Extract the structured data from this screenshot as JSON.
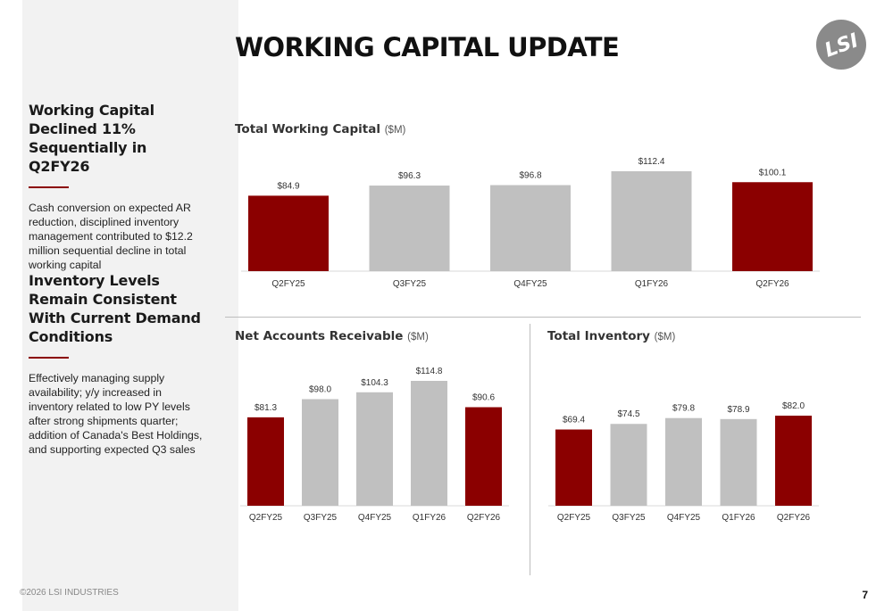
{
  "title": "WORKING CAPITAL UPDATE",
  "footer": "©2026 LSI INDUSTRIES",
  "page_number": "7",
  "logo_text": "LSI",
  "colors": {
    "highlight": "#8b0000",
    "neutral": "#c0c0c0"
  },
  "sidebar": {
    "sections": [
      {
        "heading": "Working Capital Declined 11% Sequentially in Q2FY26",
        "body": "Cash conversion on expected AR reduction, disciplined inventory management contributed to $12.2 million sequential decline in total working capital"
      },
      {
        "heading": "Inventory Levels Remain Consistent With Current Demand Conditions",
        "body": "Effectively managing supply availability; y/y increased in inventory related to low PY levels after strong shipments quarter; addition of Canada's Best Holdings, and supporting expected Q3 sales"
      }
    ]
  },
  "chart_data": [
    {
      "type": "bar",
      "title": "Total Working Capital",
      "unit": "($M)",
      "categories": [
        "Q2FY25",
        "Q3FY25",
        "Q4FY25",
        "Q1FY26",
        "Q2FY26"
      ],
      "values": [
        84.9,
        96.3,
        96.8,
        112.4,
        100.1
      ],
      "labels": [
        "$84.9",
        "$96.3",
        "$96.8",
        "$112.4",
        "$100.1"
      ],
      "highlight": [
        true,
        false,
        false,
        false,
        true
      ],
      "ylim": [
        0,
        112.4
      ]
    },
    {
      "type": "bar",
      "title": "Net Accounts Receivable",
      "unit": "($M)",
      "categories": [
        "Q2FY25",
        "Q3FY25",
        "Q4FY25",
        "Q1FY26",
        "Q2FY26"
      ],
      "values": [
        81.3,
        98.0,
        104.3,
        114.8,
        90.6
      ],
      "labels": [
        "$81.3",
        "$98.0",
        "$104.3",
        "$114.8",
        "$90.6"
      ],
      "highlight": [
        true,
        false,
        false,
        false,
        true
      ],
      "ylim": [
        0,
        114.8
      ]
    },
    {
      "type": "bar",
      "title": "Total Inventory",
      "unit": "($M)",
      "categories": [
        "Q2FY25",
        "Q3FY25",
        "Q4FY25",
        "Q1FY26",
        "Q2FY26"
      ],
      "values": [
        69.4,
        74.5,
        79.8,
        78.9,
        82.0
      ],
      "labels": [
        "$69.4",
        "$74.5",
        "$79.8",
        "$78.9",
        "$82.0"
      ],
      "highlight": [
        true,
        false,
        false,
        false,
        true
      ],
      "ylim": [
        0,
        82.0
      ]
    }
  ]
}
